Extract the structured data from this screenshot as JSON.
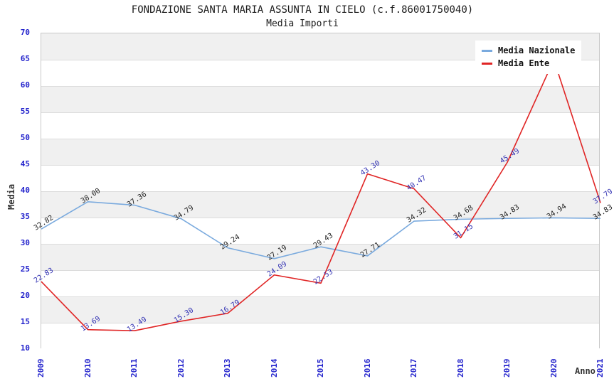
{
  "header": {
    "title": "FONDAZIONE SANTA MARIA ASSUNTA IN CIELO (c.f.86001750040)",
    "subtitle": "Media Importi"
  },
  "chart_data": {
    "type": "line",
    "title": "FONDAZIONE SANTA MARIA ASSUNTA IN CIELO (c.f.86001750040)",
    "subtitle": "Media Importi",
    "x_label": "Anno",
    "y_label": "Media",
    "categories": [
      "2009",
      "2010",
      "2011",
      "2012",
      "2013",
      "2014",
      "2015",
      "2016",
      "2017",
      "2018",
      "2019",
      "2020",
      "2021"
    ],
    "ylim": [
      10,
      70
    ],
    "ytick_step": 5,
    "yticks": [
      10,
      15,
      20,
      25,
      30,
      35,
      40,
      45,
      50,
      55,
      60,
      65,
      70
    ],
    "grid": "horizontal-bands",
    "legend_position": "top-right",
    "series": [
      {
        "name": "Media Nazionale",
        "color": "#7aaade",
        "label_color": "#222222",
        "values": [
          32.82,
          38.0,
          37.36,
          34.79,
          29.24,
          27.19,
          29.43,
          27.71,
          34.32,
          34.68,
          34.83,
          34.94,
          34.83
        ],
        "labels": [
          "32.82",
          "38.00",
          "37.36",
          "34.79",
          "29.24",
          "27.19",
          "29.43",
          "27.71",
          "34.32",
          "34.68",
          "34.83",
          "34.94",
          "34.83"
        ]
      },
      {
        "name": "Media Ente",
        "color": "#e02525",
        "label_color": "#3434b4",
        "values": [
          22.83,
          13.69,
          13.49,
          15.3,
          16.79,
          24.09,
          22.53,
          43.3,
          40.47,
          31.15,
          45.49,
          65.0,
          37.79
        ],
        "labels": [
          "22.83",
          "13.69",
          "13.49",
          "15.30",
          "16.79",
          "24.09",
          "22.53",
          "43.30",
          "40.47",
          "31.15",
          "45.49",
          null,
          "37.79"
        ]
      }
    ]
  },
  "style": {
    "background": "#ffffff",
    "band_color": "#f0f0f0",
    "grid_color": "#dcdcdc",
    "plot_border_color": "#c8c8c8",
    "tick_label_color": "#2222cc",
    "axis_title_color": "#333333",
    "title_color": "#1a1a1a"
  }
}
